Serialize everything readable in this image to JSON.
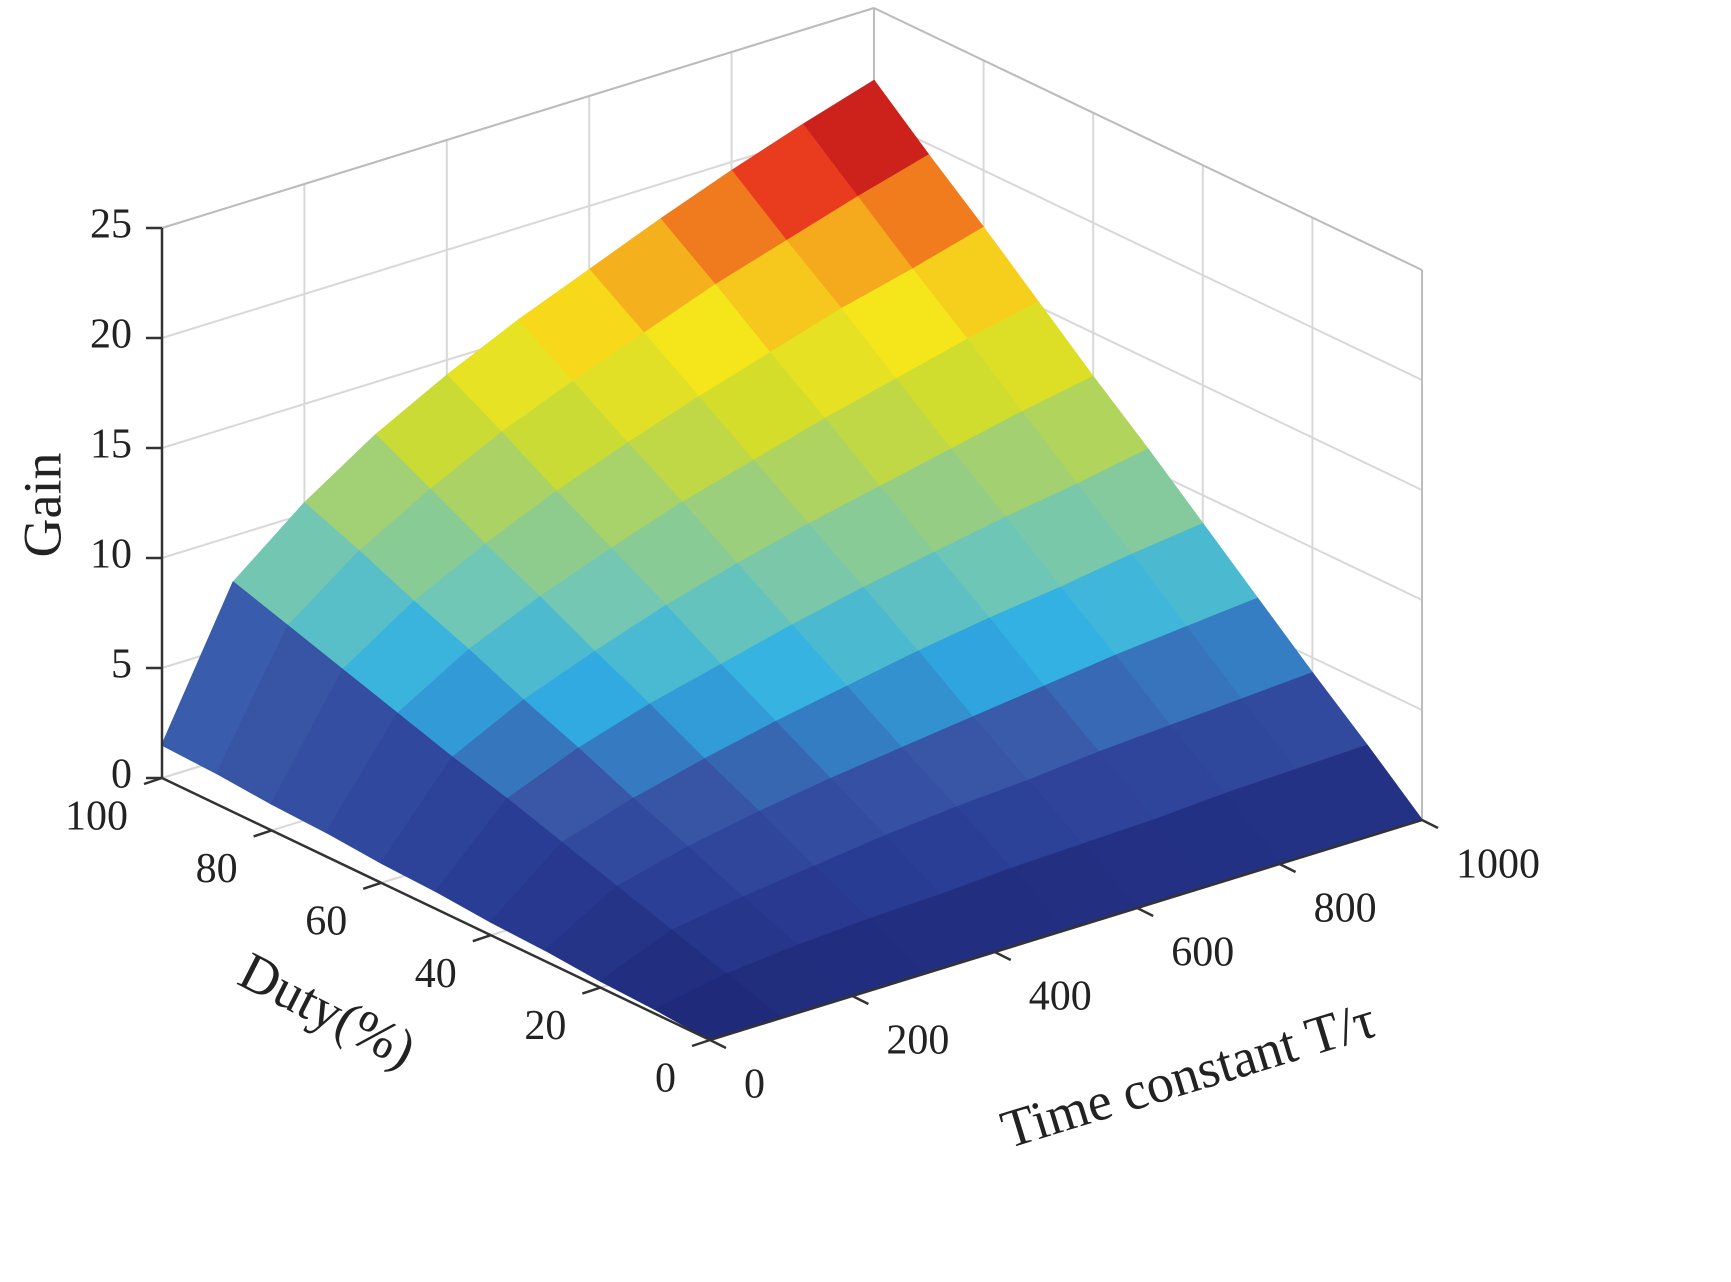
{
  "chart_data": {
    "type": "surface",
    "x_label": "Time constant T/τ",
    "y_label": "Duty(%)",
    "z_label": "Gain",
    "x": [
      0,
      100,
      200,
      300,
      400,
      500,
      600,
      700,
      800,
      900,
      1000
    ],
    "y": [
      0,
      10,
      20,
      30,
      40,
      50,
      60,
      70,
      80,
      90,
      100
    ],
    "z": [
      [
        0,
        0,
        0,
        0,
        0,
        0,
        0,
        0,
        0,
        0,
        0
      ],
      [
        0.2,
        0.8,
        1.1,
        1.3,
        1.4,
        1.6,
        1.7,
        1.8,
        2.0,
        2.1,
        2.2
      ],
      [
        0.3,
        1.6,
        2.1,
        2.5,
        2.9,
        3.2,
        3.4,
        3.7,
        3.9,
        4.1,
        4.3
      ],
      [
        0.5,
        2.4,
        3.2,
        3.8,
        4.3,
        4.7,
        5.1,
        5.5,
        5.9,
        6.2,
        6.5
      ],
      [
        0.6,
        3.2,
        4.2,
        5.0,
        5.7,
        6.3,
        6.9,
        7.4,
        7.8,
        8.3,
        8.7
      ],
      [
        0.8,
        4.0,
        5.3,
        6.3,
        7.1,
        7.9,
        8.6,
        9.2,
        9.8,
        10.3,
        10.9
      ],
      [
        0.9,
        4.7,
        6.3,
        7.5,
        8.6,
        9.5,
        10.3,
        11.0,
        11.7,
        12.4,
        13.0
      ],
      [
        1.1,
        5.5,
        7.4,
        8.8,
        10.0,
        11.1,
        12.0,
        12.9,
        13.7,
        14.5,
        15.2
      ],
      [
        1.2,
        6.3,
        8.4,
        10.0,
        11.4,
        12.6,
        13.7,
        14.7,
        15.7,
        16.5,
        17.4
      ],
      [
        1.4,
        7.1,
        9.5,
        11.3,
        12.9,
        14.2,
        15.4,
        16.6,
        17.6,
        18.6,
        19.5
      ],
      [
        1.5,
        7.9,
        10.5,
        12.6,
        14.3,
        15.8,
        17.1,
        18.4,
        19.6,
        20.7,
        21.7
      ]
    ],
    "xlim": [
      0,
      1000
    ],
    "xticks": [
      0,
      200,
      400,
      600,
      800,
      1000
    ],
    "ylim": [
      0,
      100
    ],
    "yticks": [
      0,
      20,
      40,
      60,
      80,
      100
    ],
    "zlim": [
      0,
      25
    ],
    "zticks": [
      0,
      5,
      10,
      15,
      20,
      25
    ],
    "grid": true,
    "colormap": [
      "#1e2876",
      "#2a3d95",
      "#3a58a8",
      "#2fb0e6",
      "#72c7b4",
      "#9fcf78",
      "#cfdc2e",
      "#f7e61b",
      "#f5a11d",
      "#e6251f",
      "#8b1515"
    ]
  }
}
